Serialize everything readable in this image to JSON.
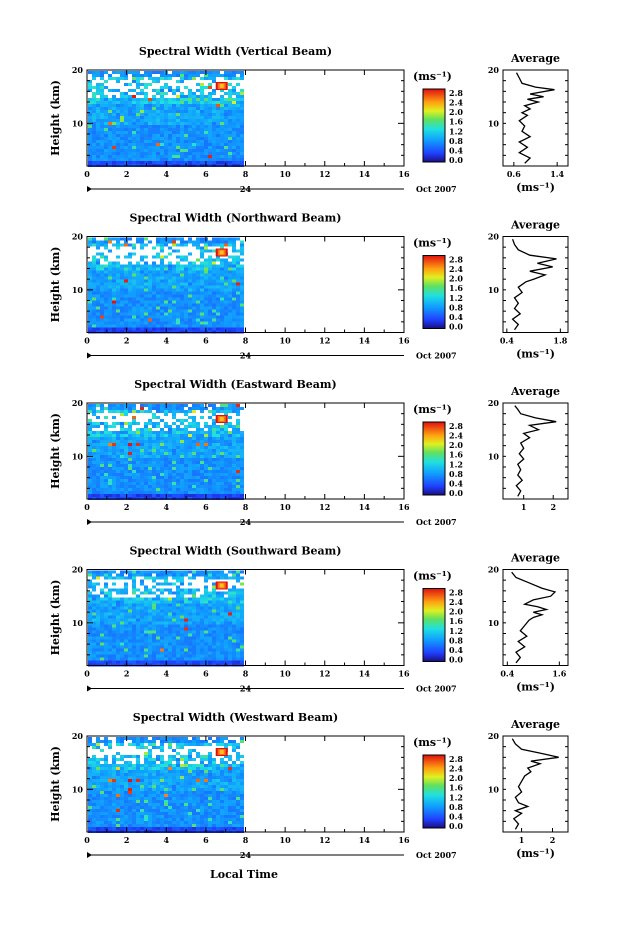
{
  "chart_data": [
    {
      "type": "heatmap",
      "title": "Spectral Width (Vertical Beam)",
      "ylabel": "Height (km)",
      "xticks": [
        "0",
        "2",
        "4",
        "6",
        "8",
        "10",
        "12",
        "14",
        "16"
      ],
      "yticks": [
        "10",
        "20"
      ],
      "xlim": [
        0,
        16
      ],
      "ylim": [
        2,
        20
      ],
      "date_day": "24",
      "date_month": "Oct 2007",
      "data_end_hour": 7.8,
      "colorbar": {
        "unit": "(ms⁻¹)",
        "ticks": [
          "2.8",
          "2.4",
          "2.0",
          "1.6",
          "1.2",
          "0.8",
          "0.4",
          "0.0"
        ]
      },
      "average": {
        "title": "Average",
        "xticks": [
          "0.6",
          "1.4"
        ],
        "xunit": "(ms⁻¹)",
        "yticks": [
          "10",
          "20"
        ],
        "xlim": [
          0.4,
          1.6
        ],
        "profile": [
          [
            0.8,
            2.5
          ],
          [
            0.9,
            3.5
          ],
          [
            0.7,
            4.5
          ],
          [
            0.85,
            5.5
          ],
          [
            0.7,
            6.5
          ],
          [
            0.9,
            7.5
          ],
          [
            0.75,
            8.5
          ],
          [
            0.8,
            9.5
          ],
          [
            0.7,
            10.5
          ],
          [
            0.85,
            11.5
          ],
          [
            0.75,
            12.0
          ],
          [
            0.9,
            12.7
          ],
          [
            0.8,
            13.3
          ],
          [
            1.05,
            14.0
          ],
          [
            0.85,
            14.5
          ],
          [
            1.15,
            15.0
          ],
          [
            0.9,
            15.5
          ],
          [
            1.35,
            16.3
          ],
          [
            1.0,
            16.8
          ],
          [
            0.75,
            17.5
          ],
          [
            0.7,
            18.5
          ],
          [
            0.65,
            19.5
          ]
        ]
      }
    },
    {
      "type": "heatmap",
      "title": "Spectral Width (Northward Beam)",
      "ylabel": "Height (km)",
      "xticks": [
        "0",
        "2",
        "4",
        "6",
        "8",
        "10",
        "12",
        "14",
        "16"
      ],
      "yticks": [
        "10",
        "20"
      ],
      "xlim": [
        0,
        16
      ],
      "ylim": [
        2,
        20
      ],
      "date_day": "24",
      "date_month": "Oct 2007",
      "data_end_hour": 7.8,
      "colorbar": {
        "unit": "(ms⁻¹)",
        "ticks": [
          "2.8",
          "2.4",
          "2.0",
          "1.6",
          "1.2",
          "0.8",
          "0.4",
          "0.0"
        ]
      },
      "average": {
        "title": "Average",
        "xticks": [
          "0.4",
          "1.8"
        ],
        "xunit": "(ms⁻¹)",
        "yticks": [
          "10",
          "20"
        ],
        "xlim": [
          0.3,
          2.0
        ],
        "profile": [
          [
            0.6,
            2.5
          ],
          [
            0.7,
            3.5
          ],
          [
            0.55,
            4.5
          ],
          [
            0.75,
            5.5
          ],
          [
            0.6,
            6.5
          ],
          [
            0.7,
            7.5
          ],
          [
            0.6,
            8.5
          ],
          [
            0.8,
            9.5
          ],
          [
            0.7,
            10.5
          ],
          [
            0.9,
            11.5
          ],
          [
            1.1,
            12.0
          ],
          [
            1.4,
            12.8
          ],
          [
            1.0,
            13.5
          ],
          [
            1.6,
            14.3
          ],
          [
            1.2,
            15.0
          ],
          [
            1.7,
            15.8
          ],
          [
            1.0,
            16.5
          ],
          [
            0.7,
            17.5
          ],
          [
            0.6,
            18.5
          ],
          [
            0.55,
            19.5
          ]
        ]
      }
    },
    {
      "type": "heatmap",
      "title": "Spectral Width (Eastward Beam)",
      "ylabel": "Height (km)",
      "xticks": [
        "0",
        "2",
        "4",
        "6",
        "8",
        "10",
        "12",
        "14",
        "16"
      ],
      "yticks": [
        "10",
        "20"
      ],
      "xlim": [
        0,
        16
      ],
      "ylim": [
        2,
        20
      ],
      "date_day": "24",
      "date_month": "Oct 2007",
      "data_end_hour": 7.8,
      "colorbar": {
        "unit": "(ms⁻¹)",
        "ticks": [
          "2.8",
          "2.4",
          "2.0",
          "1.6",
          "1.2",
          "0.8",
          "0.4",
          "0.0"
        ]
      },
      "average": {
        "title": "Average",
        "xticks": [
          "1",
          "2"
        ],
        "xunit": "",
        "yticks": [
          "10",
          "20"
        ],
        "xlim": [
          0.3,
          2.5
        ],
        "profile": [
          [
            0.8,
            2.5
          ],
          [
            0.9,
            3.5
          ],
          [
            0.75,
            4.5
          ],
          [
            0.95,
            5.5
          ],
          [
            0.8,
            6.5
          ],
          [
            0.9,
            7.5
          ],
          [
            0.8,
            8.5
          ],
          [
            1.0,
            9.5
          ],
          [
            0.85,
            10.5
          ],
          [
            1.0,
            11.5
          ],
          [
            0.9,
            12.5
          ],
          [
            1.2,
            13.5
          ],
          [
            1.0,
            14.3
          ],
          [
            1.5,
            15.0
          ],
          [
            1.2,
            15.8
          ],
          [
            2.1,
            16.5
          ],
          [
            1.4,
            17.2
          ],
          [
            0.9,
            18.0
          ],
          [
            0.8,
            18.8
          ],
          [
            0.7,
            19.5
          ]
        ]
      }
    },
    {
      "type": "heatmap",
      "title": "Spectral Width (Southward Beam)",
      "ylabel": "Height (km)",
      "xticks": [
        "0",
        "2",
        "4",
        "6",
        "8",
        "10",
        "12",
        "14",
        "16"
      ],
      "yticks": [
        "10",
        "20"
      ],
      "xlim": [
        0,
        16
      ],
      "ylim": [
        2,
        20
      ],
      "date_day": "24",
      "date_month": "Oct 2007",
      "data_end_hour": 7.8,
      "colorbar": {
        "unit": "(ms⁻¹)",
        "ticks": [
          "2.8",
          "2.4",
          "2.0",
          "1.6",
          "1.2",
          "0.8",
          "0.4",
          "0.0"
        ]
      },
      "average": {
        "title": "Average",
        "xticks": [
          "0.4",
          "1.6"
        ],
        "xunit": "(ms⁻¹)",
        "yticks": [
          "10",
          "20"
        ],
        "xlim": [
          0.3,
          1.8
        ],
        "profile": [
          [
            0.6,
            2.5
          ],
          [
            0.7,
            3.5
          ],
          [
            0.6,
            4.5
          ],
          [
            0.8,
            5.5
          ],
          [
            0.65,
            6.5
          ],
          [
            0.85,
            7.5
          ],
          [
            0.7,
            8.5
          ],
          [
            0.8,
            9.5
          ],
          [
            0.9,
            10.5
          ],
          [
            1.0,
            11.0
          ],
          [
            1.2,
            11.5
          ],
          [
            1.0,
            12.0
          ],
          [
            1.3,
            12.5
          ],
          [
            1.1,
            13.0
          ],
          [
            0.8,
            13.5
          ],
          [
            1.0,
            14.3
          ],
          [
            1.4,
            15.0
          ],
          [
            1.5,
            15.8
          ],
          [
            1.2,
            16.5
          ],
          [
            0.9,
            17.5
          ],
          [
            0.6,
            18.5
          ],
          [
            0.5,
            19.5
          ]
        ]
      }
    },
    {
      "type": "heatmap",
      "title": "Spectral Width (Westward Beam)",
      "ylabel": "Height (km)",
      "xticks": [
        "0",
        "2",
        "4",
        "6",
        "8",
        "10",
        "12",
        "14",
        "16"
      ],
      "yticks": [
        "10",
        "20"
      ],
      "xlim": [
        0,
        16
      ],
      "ylim": [
        2,
        20
      ],
      "date_day": "24",
      "date_month": "Oct 2007",
      "data_end_hour": 7.8,
      "colorbar": {
        "unit": "(ms⁻¹)",
        "ticks": [
          "2.8",
          "2.4",
          "2.0",
          "1.6",
          "1.2",
          "0.8",
          "0.4",
          "0.0"
        ]
      },
      "average": {
        "title": "Average",
        "xticks": [
          "1",
          "2"
        ],
        "xunit": "(ms⁻¹)",
        "yticks": [
          "10",
          "20"
        ],
        "xlim": [
          0.4,
          2.5
        ],
        "profile": [
          [
            0.8,
            2.5
          ],
          [
            0.9,
            3.5
          ],
          [
            0.75,
            4.5
          ],
          [
            1.0,
            5.5
          ],
          [
            0.8,
            6.0
          ],
          [
            1.2,
            6.8
          ],
          [
            0.9,
            7.5
          ],
          [
            0.8,
            8.5
          ],
          [
            1.0,
            9.5
          ],
          [
            0.9,
            10.5
          ],
          [
            1.0,
            11.5
          ],
          [
            1.1,
            12.5
          ],
          [
            1.3,
            13.3
          ],
          [
            1.2,
            14.0
          ],
          [
            1.6,
            14.8
          ],
          [
            1.3,
            15.3
          ],
          [
            2.2,
            16.0
          ],
          [
            1.6,
            16.8
          ],
          [
            1.0,
            17.5
          ],
          [
            0.8,
            18.5
          ],
          [
            0.7,
            19.5
          ]
        ]
      }
    }
  ],
  "xlabel": "Local Time"
}
